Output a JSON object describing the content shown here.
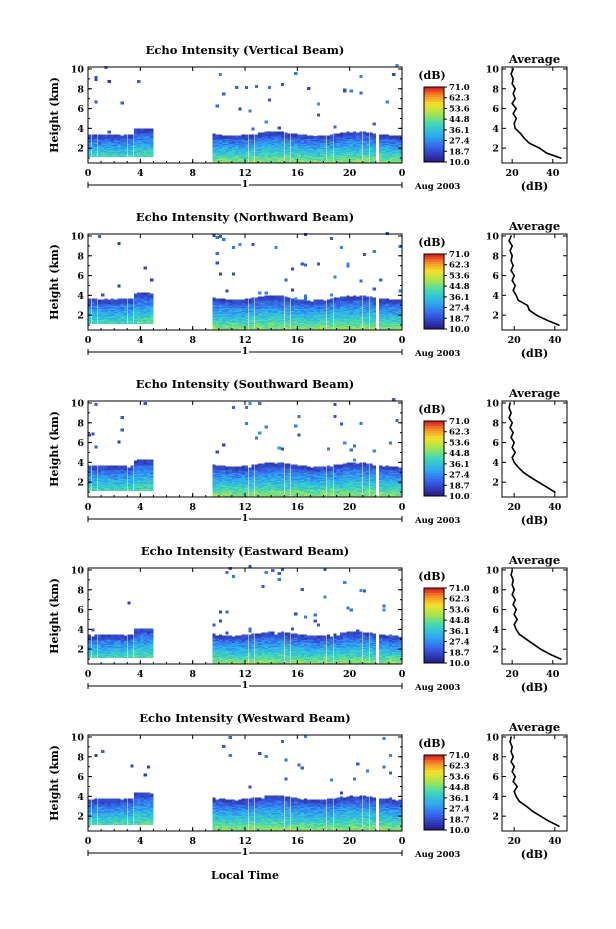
{
  "figure": {
    "x_axis_label": "Local Time",
    "date_label": "Aug 2003",
    "day_label": "1"
  },
  "chart_data": [
    {
      "type": "heatmap",
      "title": "Echo Intensity (Vertical Beam)",
      "ylabel": "Height (km)",
      "xlabel": "",
      "x_ticks": [
        "0",
        "4",
        "8",
        "12",
        "16",
        "20",
        "0"
      ],
      "y_ticks": [
        "2",
        "4",
        "6",
        "8",
        "10"
      ],
      "xlim": [
        0,
        24
      ],
      "ylim": [
        0.5,
        10.2
      ],
      "data_gaps_hours": [
        [
          4.8,
          9.3
        ],
        [
          21.8,
          22.2
        ]
      ],
      "dense_echo_top_km": 3.0,
      "sparse_echo_top_km": 9.6,
      "colorbar": {
        "unit": "(dB)",
        "values": [
          "71.0",
          "62.3",
          "53.6",
          "44.8",
          "36.1",
          "27.4",
          "18.7",
          "10.0"
        ]
      },
      "profile": {
        "title": "Average",
        "xlabel": "(dB)",
        "x_ticks": [
          "20",
          "40"
        ],
        "xlim": [
          15,
          47
        ],
        "height_km": [
          1.0,
          1.5,
          2.0,
          2.5,
          3.0,
          3.5,
          4.0,
          4.5,
          5.0,
          5.5,
          6.0,
          6.5,
          7.0,
          7.5,
          8.0,
          8.5,
          9.0,
          9.5,
          10.0
        ],
        "intensity_db": [
          44.0,
          37.0,
          33.5,
          28.5,
          26.0,
          24.0,
          21.5,
          21.0,
          22.0,
          20.5,
          22.0,
          20.0,
          21.5,
          20.5,
          21.5,
          20.0,
          20.5,
          19.5,
          20.5
        ]
      }
    },
    {
      "type": "heatmap",
      "title": "Echo Intensity (Northward Beam)",
      "ylabel": "Height (km)",
      "xlabel": "",
      "x_ticks": [
        "0",
        "4",
        "8",
        "12",
        "16",
        "20",
        "0"
      ],
      "y_ticks": [
        "2",
        "4",
        "6",
        "8",
        "10"
      ],
      "xlim": [
        0,
        24
      ],
      "ylim": [
        0.5,
        10.2
      ],
      "data_gaps_hours": [
        [
          4.8,
          9.3
        ],
        [
          21.8,
          22.2
        ]
      ],
      "dense_echo_top_km": 3.3,
      "sparse_echo_top_km": 9.6,
      "colorbar": {
        "unit": "(dB)",
        "values": [
          "71.0",
          "62.3",
          "53.6",
          "44.8",
          "36.1",
          "27.4",
          "18.7",
          "10.0"
        ]
      },
      "profile": {
        "title": "Average",
        "xlabel": "(dB)",
        "x_ticks": [
          "20",
          "40"
        ],
        "xlim": [
          14,
          46
        ],
        "height_km": [
          1.0,
          1.5,
          2.0,
          2.5,
          3.0,
          3.5,
          4.0,
          4.5,
          5.0,
          5.5,
          6.0,
          6.5,
          7.0,
          7.5,
          8.0,
          8.5,
          9.0,
          9.5,
          10.0
        ],
        "intensity_db": [
          42.0,
          36.0,
          31.0,
          27.5,
          26.5,
          22.0,
          21.0,
          19.5,
          20.5,
          19.0,
          20.0,
          18.5,
          19.5,
          18.5,
          19.0,
          18.0,
          19.0,
          17.5,
          18.5
        ]
      }
    },
    {
      "type": "heatmap",
      "title": "Echo Intensity (Southward Beam)",
      "ylabel": "Height (km)",
      "xlabel": "",
      "x_ticks": [
        "0",
        "4",
        "8",
        "12",
        "16",
        "20",
        "0"
      ],
      "y_ticks": [
        "2",
        "4",
        "6",
        "8",
        "10"
      ],
      "xlim": [
        0,
        24
      ],
      "ylim": [
        0.5,
        10.2
      ],
      "data_gaps_hours": [
        [
          4.8,
          9.3
        ],
        [
          21.8,
          22.2
        ]
      ],
      "dense_echo_top_km": 3.3,
      "sparse_echo_top_km": 9.6,
      "colorbar": {
        "unit": "(dB)",
        "values": [
          "71.0",
          "62.3",
          "53.6",
          "44.8",
          "36.1",
          "27.4",
          "18.7",
          "10.0"
        ]
      },
      "profile": {
        "title": "Average",
        "xlabel": "(dB)",
        "x_ticks": [
          "20",
          "40"
        ],
        "xlim": [
          14,
          46
        ],
        "height_km": [
          1.0,
          1.5,
          2.0,
          2.5,
          3.0,
          3.5,
          4.0,
          4.5,
          5.0,
          5.5,
          6.0,
          6.5,
          7.0,
          7.5,
          8.0,
          8.5,
          9.0,
          9.5,
          10.0
        ],
        "intensity_db": [
          40.0,
          36.0,
          32.0,
          28.0,
          24.5,
          22.0,
          20.0,
          19.0,
          20.5,
          19.0,
          20.0,
          18.5,
          19.5,
          18.0,
          19.0,
          17.5,
          18.5,
          17.5,
          18.0
        ]
      }
    },
    {
      "type": "heatmap",
      "title": "Echo Intensity (Eastward Beam)",
      "ylabel": "Height (km)",
      "xlabel": "",
      "x_ticks": [
        "0",
        "4",
        "8",
        "12",
        "16",
        "20",
        "0"
      ],
      "y_ticks": [
        "2",
        "4",
        "6",
        "8",
        "10"
      ],
      "xlim": [
        0,
        24
      ],
      "ylim": [
        0.5,
        10.2
      ],
      "data_gaps_hours": [
        [
          4.8,
          9.3
        ],
        [
          21.8,
          22.2
        ]
      ],
      "dense_echo_top_km": 3.1,
      "sparse_echo_top_km": 9.6,
      "colorbar": {
        "unit": "(dB)",
        "values": [
          "71.0",
          "62.3",
          "53.6",
          "44.8",
          "36.1",
          "27.4",
          "18.7",
          "10.0"
        ]
      },
      "profile": {
        "title": "Average",
        "xlabel": "(dB)",
        "x_ticks": [
          "20",
          "40"
        ],
        "xlim": [
          15,
          47
        ],
        "height_km": [
          1.0,
          1.5,
          2.0,
          2.5,
          3.0,
          3.5,
          4.0,
          4.5,
          5.0,
          5.5,
          6.0,
          6.5,
          7.0,
          7.5,
          8.0,
          8.5,
          9.0,
          9.5,
          10.0
        ],
        "intensity_db": [
          44.0,
          38.5,
          34.0,
          30.5,
          27.0,
          23.5,
          22.0,
          21.0,
          22.5,
          21.0,
          22.0,
          20.5,
          21.5,
          20.0,
          21.0,
          20.0,
          20.5,
          19.5,
          20.0
        ]
      }
    },
    {
      "type": "heatmap",
      "title": "Echo Intensity (Westward Beam)",
      "ylabel": "Height (km)",
      "xlabel": "",
      "x_ticks": [
        "0",
        "4",
        "8",
        "12",
        "16",
        "20",
        "0"
      ],
      "y_ticks": [
        "2",
        "4",
        "6",
        "8",
        "10"
      ],
      "xlim": [
        0,
        24
      ],
      "ylim": [
        0.5,
        10.2
      ],
      "data_gaps_hours": [
        [
          4.8,
          9.3
        ],
        [
          21.8,
          22.2
        ]
      ],
      "dense_echo_top_km": 3.4,
      "sparse_echo_top_km": 9.6,
      "colorbar": {
        "unit": "(dB)",
        "values": [
          "71.0",
          "62.3",
          "53.6",
          "44.8",
          "36.1",
          "27.4",
          "18.7",
          "10.0"
        ]
      },
      "profile": {
        "title": "Average",
        "xlabel": "(dB)",
        "x_ticks": [
          "20",
          "40"
        ],
        "xlim": [
          14,
          46
        ],
        "height_km": [
          1.0,
          1.5,
          2.0,
          2.5,
          3.0,
          3.5,
          4.0,
          4.5,
          5.0,
          5.5,
          6.0,
          6.5,
          7.0,
          7.5,
          8.0,
          8.5,
          9.0,
          9.5,
          10.0
        ],
        "intensity_db": [
          42.0,
          37.0,
          33.0,
          29.0,
          26.0,
          22.5,
          21.0,
          20.0,
          21.5,
          19.5,
          20.5,
          19.0,
          20.0,
          18.5,
          19.5,
          18.5,
          19.0,
          18.0,
          18.5
        ]
      }
    }
  ]
}
